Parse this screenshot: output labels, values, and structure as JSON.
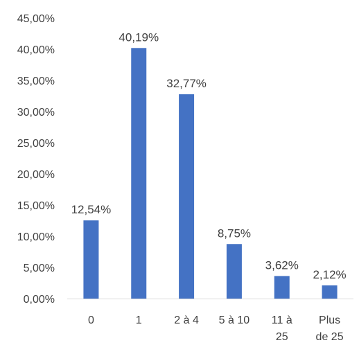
{
  "chart_data": {
    "type": "bar",
    "categories": [
      [
        "0"
      ],
      [
        "1"
      ],
      [
        "2 à 4"
      ],
      [
        "5 à 10"
      ],
      [
        "11 à",
        "25"
      ],
      [
        "Plus",
        "de 25"
      ]
    ],
    "values": [
      12.54,
      40.19,
      32.77,
      8.75,
      3.62,
      2.12
    ],
    "value_labels": [
      "12,54%",
      "40,19%",
      "32,77%",
      "8,75%",
      "3,62%",
      "2,12%"
    ],
    "y_ticks": [
      "0,00%",
      "5,00%",
      "10,00%",
      "15,00%",
      "20,00%",
      "25,00%",
      "30,00%",
      "35,00%",
      "40,00%",
      "45,00%"
    ],
    "ylim": [
      0,
      45
    ],
    "y_step": 5,
    "grid": false,
    "bar_color": "#4472C4",
    "axis_color": "#D9D9D9"
  }
}
